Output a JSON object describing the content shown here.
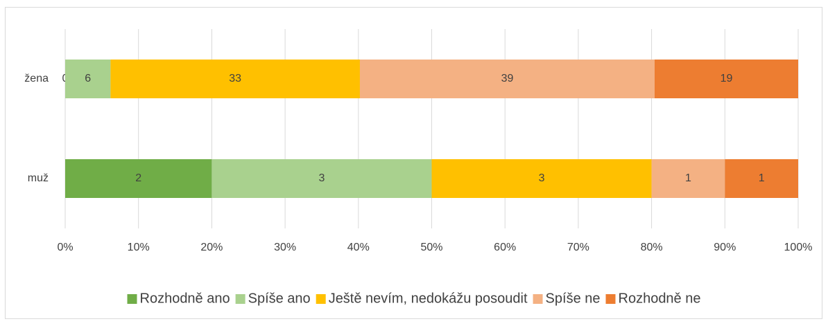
{
  "chart_data": {
    "type": "bar",
    "orientation": "horizontal",
    "stacked": "percent",
    "categories": [
      "žena",
      "muž"
    ],
    "series": [
      {
        "name": "Rozhodně ano",
        "color": "#70ad47",
        "values": [
          0,
          2
        ]
      },
      {
        "name": "Spíše ano",
        "color": "#a9d18e",
        "values": [
          6,
          3
        ]
      },
      {
        "name": "Ještě nevím, nedokážu posoudit",
        "color": "#ffc000",
        "values": [
          33,
          3
        ]
      },
      {
        "name": "Spíše ne",
        "color": "#f4b183",
        "values": [
          39,
          1
        ]
      },
      {
        "name": "Rozhodně ne",
        "color": "#ed7d31",
        "values": [
          19,
          1
        ]
      }
    ],
    "xlim": [
      0,
      100
    ],
    "xticks": [
      {
        "value": 0,
        "label": "0%"
      },
      {
        "value": 10,
        "label": "10%"
      },
      {
        "value": 20,
        "label": "20%"
      },
      {
        "value": 30,
        "label": "30%"
      },
      {
        "value": 40,
        "label": "40%"
      },
      {
        "value": 50,
        "label": "50%"
      },
      {
        "value": 60,
        "label": "60%"
      },
      {
        "value": 70,
        "label": "70%"
      },
      {
        "value": 80,
        "label": "80%"
      },
      {
        "value": 90,
        "label": "90%"
      },
      {
        "value": 100,
        "label": "100%"
      }
    ],
    "grid": true,
    "legend": "bottom"
  }
}
